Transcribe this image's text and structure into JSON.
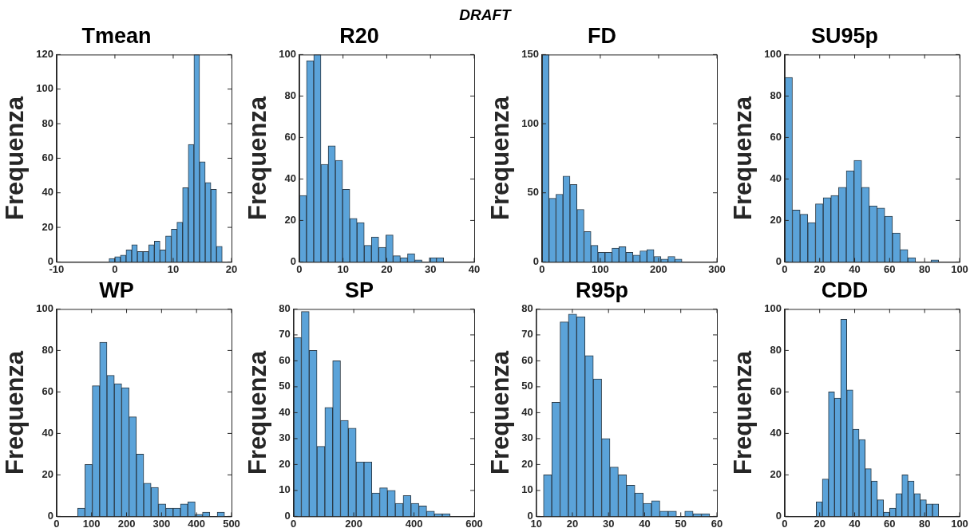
{
  "chart_data": [
    {
      "type": "histogram",
      "title": "Tmean",
      "ylabel": "Frequenza",
      "annotations": [
        "DRAFT"
      ],
      "color": "#5ba3d9",
      "xlim": [
        -10,
        20
      ],
      "xticks": [
        -10,
        0,
        10,
        20
      ],
      "ylim": [
        0,
        120
      ],
      "yticks": [
        0,
        20,
        40,
        60,
        80,
        100,
        120
      ],
      "bins": [
        -1,
        -0.03,
        0.94,
        1.91,
        2.88,
        3.85,
        4.82,
        5.79,
        6.76,
        7.73,
        8.7,
        9.67,
        10.64,
        11.61,
        12.58,
        13.55,
        14.52,
        15.49,
        16.46,
        17.43,
        18.4
      ],
      "values": [
        2,
        3,
        4,
        7,
        10,
        6,
        6,
        10,
        12,
        7,
        15,
        19,
        23,
        43,
        68,
        120,
        58,
        46,
        42,
        9
      ]
    },
    {
      "type": "histogram",
      "title": "R20",
      "ylabel": "Frequenza",
      "color": "#5ba3d9",
      "xlim": [
        0,
        40
      ],
      "xticks": [
        0,
        10,
        20,
        30,
        40
      ],
      "ylim": [
        0,
        100
      ],
      "yticks": [
        0,
        20,
        40,
        60,
        80,
        100
      ],
      "bins": [
        0,
        1.65,
        3.3,
        4.95,
        6.6,
        8.25,
        9.9,
        11.55,
        13.2,
        14.85,
        16.5,
        18.15,
        19.8,
        21.45,
        23.1,
        24.75,
        26.4,
        28.05,
        29.7,
        31.35,
        33
      ],
      "values": [
        32,
        97,
        100,
        47,
        56,
        49,
        35,
        21,
        19,
        8,
        12,
        7,
        13,
        3,
        2,
        4,
        1,
        0,
        2,
        2
      ]
    },
    {
      "type": "histogram",
      "title": "FD",
      "ylabel": "Frequenza",
      "color": "#5ba3d9",
      "xlim": [
        0,
        300
      ],
      "xticks": [
        0,
        100,
        200,
        300
      ],
      "ylim": [
        0,
        150
      ],
      "yticks": [
        0,
        50,
        100,
        150
      ],
      "bins": [
        0,
        12,
        24,
        36,
        48,
        60,
        72,
        84,
        96,
        108,
        120,
        132,
        144,
        156,
        168,
        180,
        192,
        204,
        216,
        228,
        240
      ],
      "values": [
        150,
        46,
        49,
        62,
        56,
        38,
        22,
        12,
        7,
        7,
        10,
        11,
        7,
        5,
        8,
        9,
        4,
        2,
        4,
        2
      ]
    },
    {
      "type": "histogram",
      "title": "SU95p",
      "ylabel": "Frequenza",
      "color": "#5ba3d9",
      "xlim": [
        0,
        100
      ],
      "xticks": [
        0,
        20,
        40,
        60,
        80,
        100
      ],
      "ylim": [
        0,
        100
      ],
      "yticks": [
        0,
        20,
        40,
        60,
        80,
        100
      ],
      "bins": [
        0,
        4.4,
        8.8,
        13.2,
        17.6,
        22,
        26.4,
        30.8,
        35.2,
        39.6,
        44,
        48.4,
        52.8,
        57.2,
        61.6,
        66,
        70.4,
        74.8,
        79.2,
        83.6,
        88
      ],
      "values": [
        89,
        25,
        23,
        19,
        28,
        31,
        32,
        36,
        44,
        49,
        36,
        27,
        26,
        22,
        14,
        6,
        2,
        0,
        0,
        1
      ]
    },
    {
      "type": "histogram",
      "title": "WP",
      "ylabel": "Frequenza",
      "color": "#5ba3d9",
      "xlim": [
        0,
        500
      ],
      "xticks": [
        0,
        100,
        200,
        300,
        400,
        500
      ],
      "ylim": [
        0,
        100
      ],
      "yticks": [
        0,
        20,
        40,
        60,
        80,
        100
      ],
      "bins": [
        60,
        81,
        102,
        123,
        144,
        165,
        186,
        207,
        228,
        249,
        270,
        291,
        312,
        333,
        354,
        375,
        396,
        417,
        438,
        459,
        480
      ],
      "values": [
        4,
        25,
        63,
        84,
        68,
        64,
        62,
        48,
        30,
        16,
        14,
        6,
        4,
        4,
        6,
        7,
        1,
        2,
        0,
        2
      ]
    },
    {
      "type": "histogram",
      "title": "SP",
      "ylabel": "Frequenza",
      "color": "#5ba3d9",
      "xlim": [
        0,
        600
      ],
      "xticks": [
        0,
        200,
        400,
        600
      ],
      "ylim": [
        0,
        80
      ],
      "yticks": [
        0,
        10,
        20,
        30,
        40,
        50,
        60,
        70,
        80
      ],
      "bins": [
        0,
        26,
        52,
        78,
        104,
        130,
        156,
        182,
        208,
        234,
        260,
        286,
        312,
        338,
        364,
        390,
        416,
        442,
        468,
        494,
        520
      ],
      "values": [
        69,
        79,
        64,
        27,
        42,
        60,
        37,
        34,
        21,
        21,
        9,
        11,
        10,
        5,
        8,
        5,
        4,
        2,
        1,
        1
      ]
    },
    {
      "type": "histogram",
      "title": "R95p",
      "ylabel": "Frequenza",
      "color": "#5ba3d9",
      "xlim": [
        10,
        60
      ],
      "xticks": [
        10,
        20,
        30,
        40,
        50,
        60
      ],
      "ylim": [
        0,
        80
      ],
      "yticks": [
        0,
        10,
        20,
        30,
        40,
        50,
        60,
        70,
        80
      ],
      "bins": [
        12,
        14.3,
        16.6,
        18.9,
        21.2,
        23.5,
        25.8,
        28.1,
        30.4,
        32.7,
        35,
        37.3,
        39.6,
        41.9,
        44.2,
        46.5,
        48.8,
        51.1,
        53.4,
        55.7,
        58
      ],
      "values": [
        16,
        44,
        75,
        78,
        77,
        62,
        53,
        30,
        19,
        16,
        12,
        9,
        5,
        6,
        2,
        2,
        0,
        2,
        1,
        1
      ]
    },
    {
      "type": "histogram",
      "title": "CDD",
      "ylabel": "Frequenza",
      "color": "#5ba3d9",
      "xlim": [
        0,
        100
      ],
      "xticks": [
        0,
        20,
        40,
        60,
        80,
        100
      ],
      "ylim": [
        0,
        100
      ],
      "yticks": [
        0,
        20,
        40,
        60,
        80,
        100
      ],
      "bins": [
        18,
        21.5,
        25,
        28.5,
        32,
        35.5,
        39,
        42.5,
        46,
        49.5,
        53,
        56.5,
        60,
        63.5,
        67,
        70.5,
        74,
        77.5,
        81,
        84.5,
        88
      ],
      "values": [
        7,
        18,
        60,
        57,
        95,
        61,
        42,
        37,
        23,
        17,
        8,
        2,
        4,
        11,
        20,
        17,
        11,
        8,
        6,
        6
      ]
    }
  ]
}
